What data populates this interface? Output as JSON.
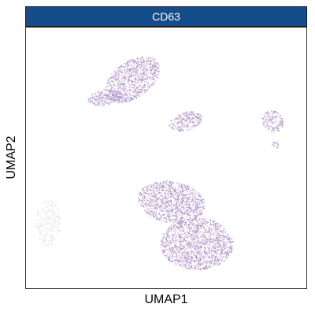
{
  "chart_data": {
    "type": "scatter",
    "title": "CD63",
    "xlabel": "UMAP1",
    "ylabel": "UMAP2",
    "xlim": [
      0,
      100
    ],
    "ylim": [
      0,
      100
    ],
    "grid": false,
    "legend": "none",
    "series": [
      {
        "color": "#9b78b8",
        "clusters": [
          {
            "cx": 38,
            "cy": 80,
            "rx": 11,
            "ry": 7,
            "rot": -35,
            "density": 1.0
          },
          {
            "cx": 28,
            "cy": 73,
            "rx": 6,
            "ry": 3,
            "rot": -10,
            "density": 1.0
          },
          {
            "cx": 57,
            "cy": 64,
            "rx": 6,
            "ry": 3.5,
            "rot": -15,
            "density": 1.0
          },
          {
            "cx": 88,
            "cy": 64,
            "rx": 3.5,
            "ry": 4.5,
            "rot": -40,
            "density": 0.9
          },
          {
            "cx": 89,
            "cy": 55,
            "rx": 1.2,
            "ry": 1.5,
            "rot": 0,
            "density": 0.9
          },
          {
            "cx": 52,
            "cy": 33,
            "rx": 12,
            "ry": 8,
            "rot": 10,
            "density": 1.0
          },
          {
            "cx": 61,
            "cy": 17,
            "rx": 13,
            "ry": 10,
            "rot": 0,
            "density": 1.0
          }
        ]
      },
      {
        "color": "#d9d9d9",
        "clusters": [
          {
            "cx": 8,
            "cy": 25,
            "rx": 4.5,
            "ry": 9,
            "rot": 0,
            "density": 0.6
          }
        ]
      }
    ]
  },
  "colors": {
    "strip_fill": "#154c8a",
    "expressed": "#9b78b8",
    "not_expressed": "#d9d9d9"
  }
}
